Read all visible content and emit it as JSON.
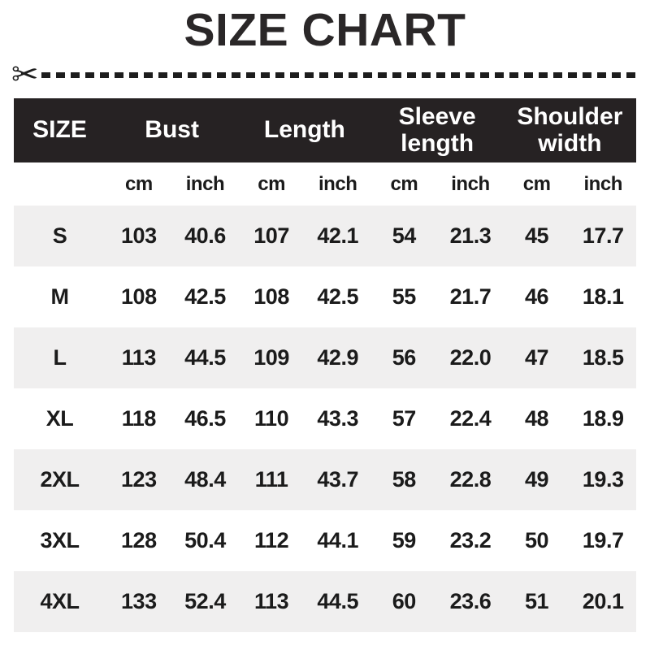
{
  "title": "SIZE CHART",
  "icons": {
    "scissors": "✂"
  },
  "colors": {
    "title_color": "#2a2728",
    "header_bg": "#262223",
    "header_text": "#ffffff",
    "row_alt_bg": "#f0efef",
    "body_text": "#1b1b1b",
    "dash_color": "#1d1d1d"
  },
  "chart_data": {
    "type": "table",
    "title": "SIZE CHART",
    "size_header": "SIZE",
    "column_groups": [
      "Bust",
      "Length",
      "Sleeve length",
      "Shoulder width"
    ],
    "units": [
      "cm",
      "inch",
      "cm",
      "inch",
      "cm",
      "inch",
      "cm",
      "inch"
    ],
    "rows": [
      {
        "size": "S",
        "values": [
          "103",
          "40.6",
          "107",
          "42.1",
          "54",
          "21.3",
          "45",
          "17.7"
        ]
      },
      {
        "size": "M",
        "values": [
          "108",
          "42.5",
          "108",
          "42.5",
          "55",
          "21.7",
          "46",
          "18.1"
        ]
      },
      {
        "size": "L",
        "values": [
          "113",
          "44.5",
          "109",
          "42.9",
          "56",
          "22.0",
          "47",
          "18.5"
        ]
      },
      {
        "size": "XL",
        "values": [
          "118",
          "46.5",
          "110",
          "43.3",
          "57",
          "22.4",
          "48",
          "18.9"
        ]
      },
      {
        "size": "2XL",
        "values": [
          "123",
          "48.4",
          "111",
          "43.7",
          "58",
          "22.8",
          "49",
          "19.3"
        ]
      },
      {
        "size": "3XL",
        "values": [
          "128",
          "50.4",
          "112",
          "44.1",
          "59",
          "23.2",
          "50",
          "19.7"
        ]
      },
      {
        "size": "4XL",
        "values": [
          "133",
          "52.4",
          "113",
          "44.5",
          "60",
          "23.6",
          "51",
          "20.1"
        ]
      }
    ]
  }
}
